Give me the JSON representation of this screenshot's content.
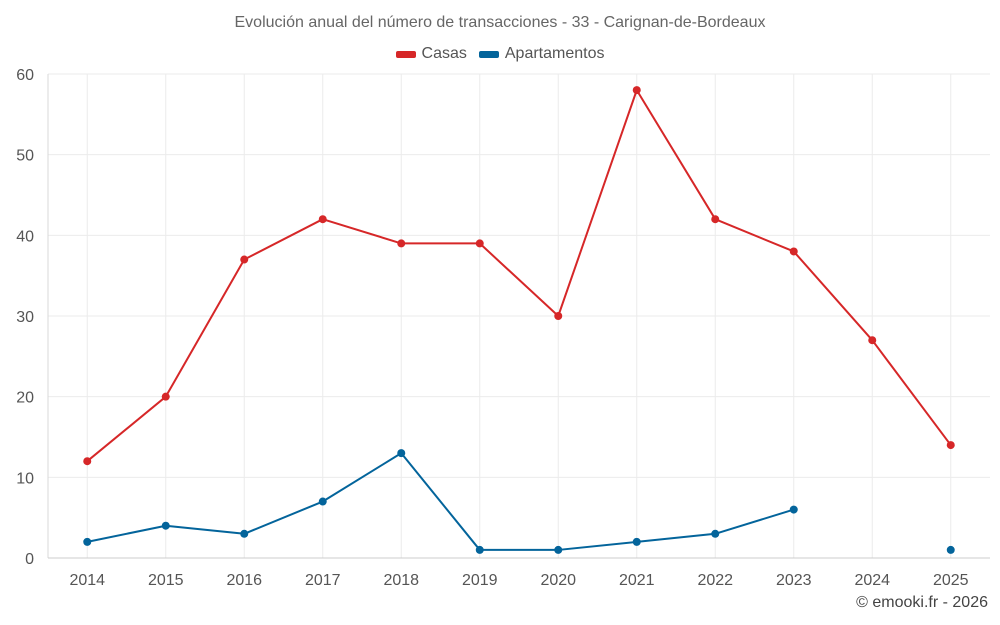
{
  "chart_data": {
    "type": "line",
    "title": "Evolución anual del número de transacciones - 33 - Carignan-de-Bordeaux",
    "xlabel": "",
    "ylabel": "",
    "ylim": [
      0,
      60
    ],
    "yticks": [
      0,
      10,
      20,
      30,
      40,
      50,
      60
    ],
    "grid": true,
    "legend_position": "top-center",
    "categories": [
      "2014",
      "2015",
      "2016",
      "2017",
      "2018",
      "2019",
      "2020",
      "2021",
      "2022",
      "2023",
      "2024",
      "2025"
    ],
    "series": [
      {
        "name": "Casas",
        "color": "#d62728",
        "values": [
          12,
          20,
          37,
          42,
          39,
          39,
          30,
          58,
          42,
          38,
          27,
          14
        ]
      },
      {
        "name": "Apartamentos",
        "color": "#03649b",
        "values": [
          2,
          4,
          3,
          7,
          13,
          1,
          1,
          2,
          3,
          6,
          null,
          1
        ]
      }
    ]
  },
  "credit": "© emooki.fr - 2026"
}
